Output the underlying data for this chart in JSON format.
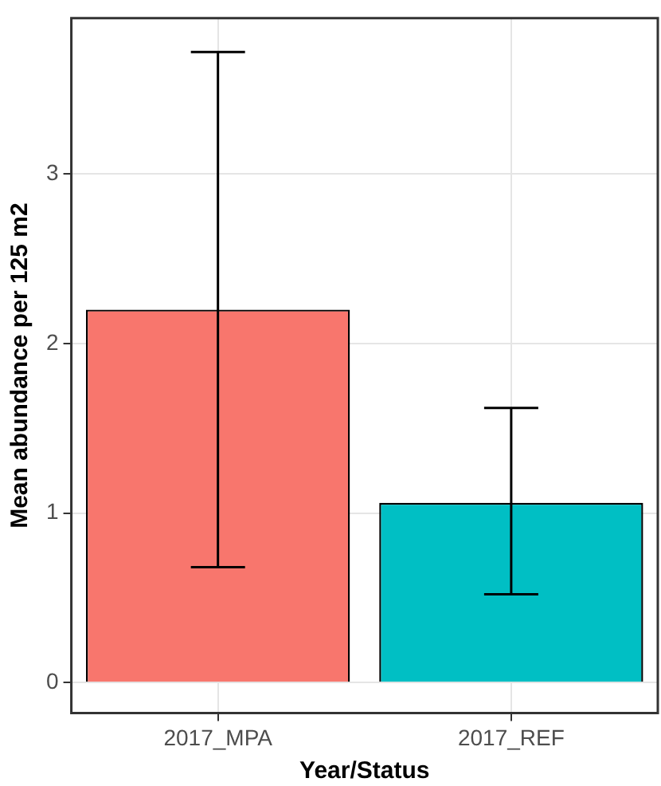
{
  "chart_data": {
    "type": "bar",
    "xlabel": "Year/Status",
    "ylabel": "Mean abundance per 125 m2",
    "categories": [
      "2017_MPA",
      "2017_REF"
    ],
    "values": [
      2.2,
      1.06
    ],
    "colors": [
      "#f8766d",
      "#00bfc4"
    ],
    "errors": [
      [
        0.68,
        3.72
      ],
      [
        0.52,
        1.62
      ]
    ],
    "ylim": [
      -0.18,
      3.92
    ],
    "yticks": [
      0,
      1,
      2,
      3
    ],
    "grid": true,
    "legend": false
  }
}
